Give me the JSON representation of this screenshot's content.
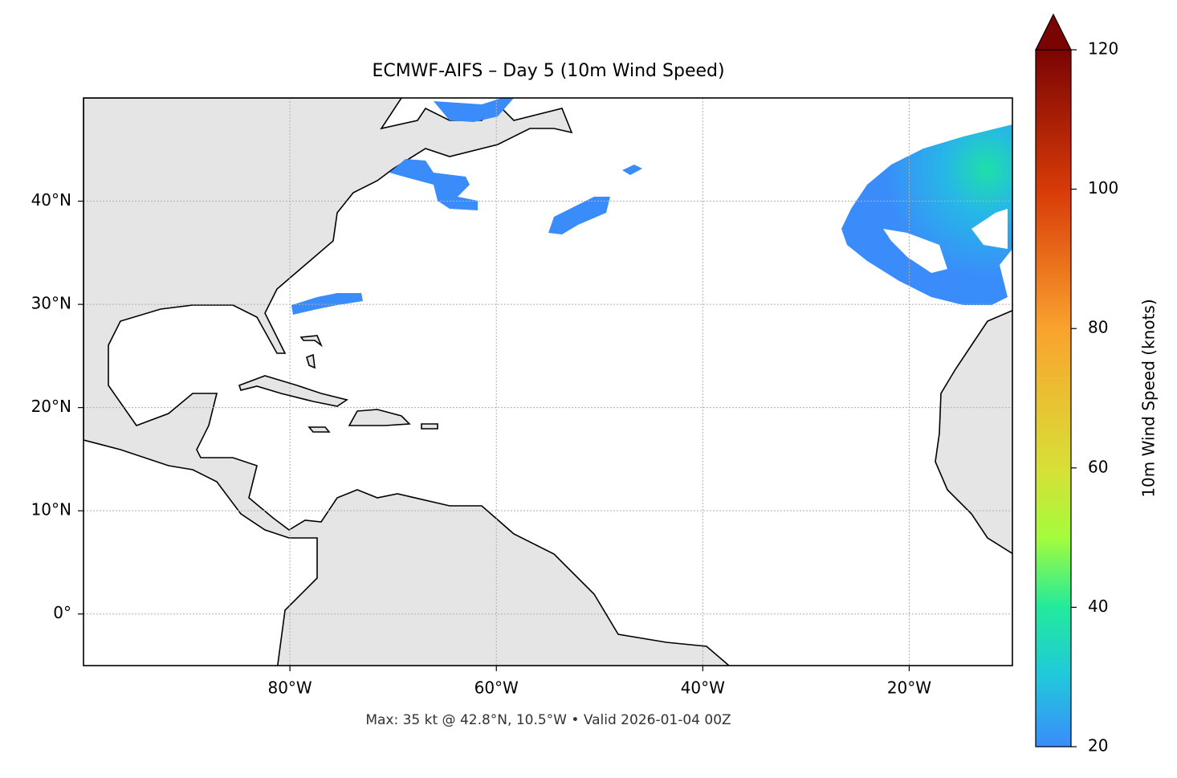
{
  "chart_data": {
    "type": "map",
    "title": "ECMWF-AIFS – Day 5 (10m Wind Speed)",
    "subtitle": "Max: 35 kt @ 42.8°N, 10.5°W • Valid 2026-01-04 00Z",
    "xlim": [
      -100,
      -10
    ],
    "ylim": [
      -5,
      50
    ],
    "xticks": [
      {
        "value": -80,
        "label": "80°W"
      },
      {
        "value": -60,
        "label": "60°W"
      },
      {
        "value": -40,
        "label": "40°W"
      },
      {
        "value": -20,
        "label": "20°W"
      }
    ],
    "yticks": [
      {
        "value": 0,
        "label": "0°"
      },
      {
        "value": 10,
        "label": "10°N"
      },
      {
        "value": 20,
        "label": "20°N"
      },
      {
        "value": 30,
        "label": "30°N"
      },
      {
        "value": 40,
        "label": "40°N"
      }
    ],
    "grid": true,
    "colorbar": {
      "label": "10m Wind Speed (knots)",
      "lim": [
        20,
        120
      ],
      "ticks": [
        20,
        40,
        60,
        80,
        100,
        120
      ],
      "extend": "max"
    }
  }
}
